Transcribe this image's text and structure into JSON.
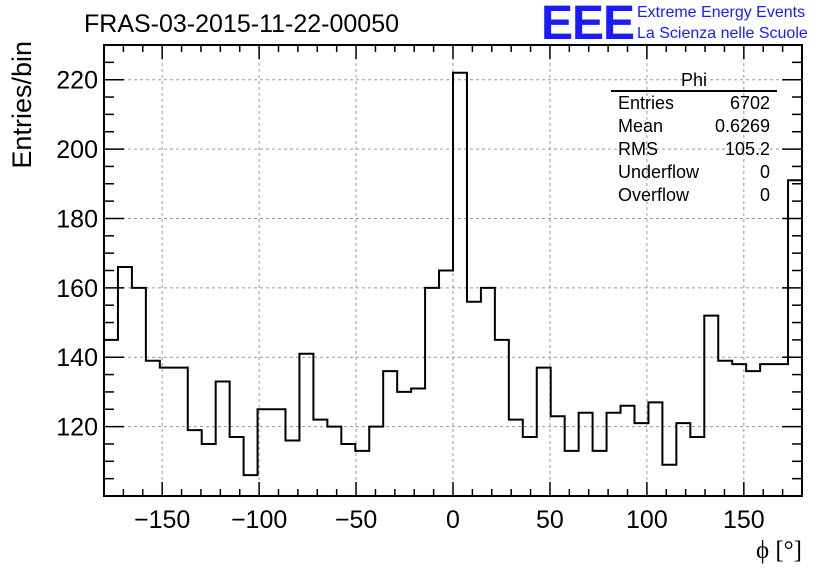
{
  "chart_data": {
    "type": "histogram",
    "title": "FRAS-03-2015-11-22-00050",
    "xlabel": "ϕ [°]",
    "ylabel": "Entries/bin",
    "xlim": [
      -180,
      180
    ],
    "ylim": [
      100,
      230
    ],
    "bin_width": 7.2,
    "grid": true,
    "x_ticks": [
      -150,
      -100,
      -50,
      0,
      50,
      100,
      150
    ],
    "x_tick_labels": [
      "−150",
      "−100",
      "−50",
      "0",
      "50",
      "100",
      "150"
    ],
    "y_ticks": [
      120,
      140,
      160,
      180,
      200,
      220
    ],
    "y_tick_labels": [
      "120",
      "140",
      "160",
      "180",
      "200",
      "220"
    ],
    "values": [
      145,
      166,
      160,
      139,
      137,
      137,
      119,
      115,
      133,
      117,
      106,
      125,
      125,
      116,
      141,
      122,
      120,
      115,
      113,
      120,
      136,
      130,
      131,
      160,
      165,
      222,
      156,
      160,
      145,
      122,
      117,
      137,
      123,
      113,
      124,
      113,
      124,
      126,
      121,
      127,
      109,
      121,
      117,
      152,
      139,
      138,
      136,
      138,
      138,
      191
    ]
  },
  "stats_box": {
    "name": "Phi",
    "rows": [
      {
        "label": "Entries",
        "value": "6702"
      },
      {
        "label": "Mean",
        "value": "0.6269"
      },
      {
        "label": "RMS",
        "value": "105.2"
      },
      {
        "label": "Underflow",
        "value": "0"
      },
      {
        "label": "Overflow",
        "value": "0"
      }
    ]
  },
  "logo": {
    "mark": "EEE",
    "line1": "Extreme Energy Events",
    "line2": "La Scienza nelle Scuole"
  }
}
